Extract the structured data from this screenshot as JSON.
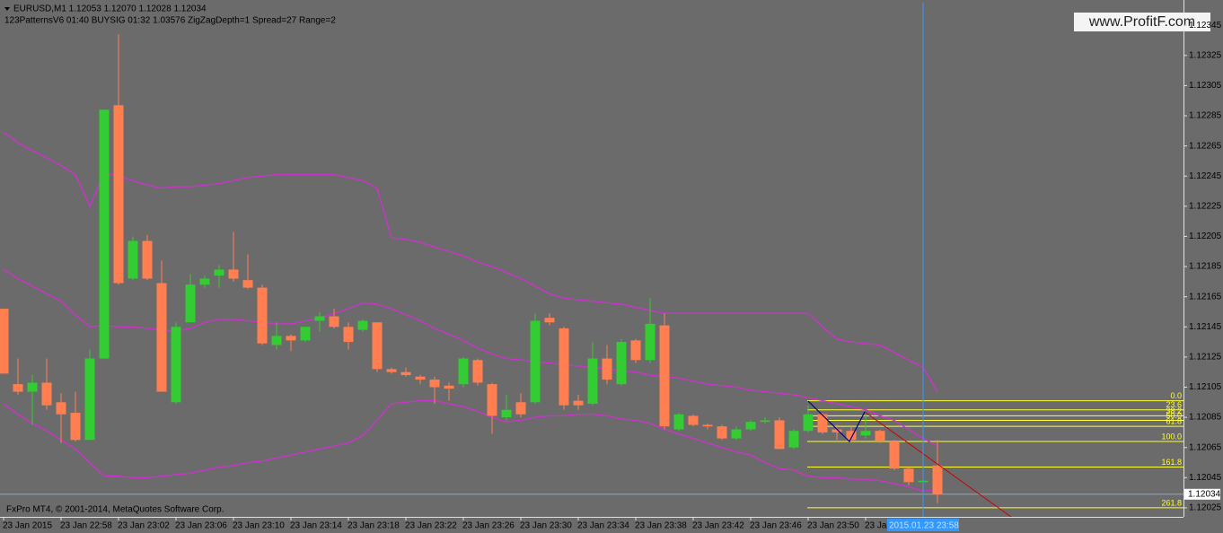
{
  "chart_data": {
    "type": "candlestick",
    "header": {
      "symbol_line": "EURUSD,M1  1.12053 1.12070 1.12028 1.12034",
      "indicator_line": "123PatternsV6  01:40  BUYSIG  01:32  1.03576  ZigZagDepth=1  Spread=27  Range=2"
    },
    "copyright": "FxPro MT4, © 2001-2014, MetaQuotes Software Corp.",
    "watermark": "www.ProfitF.com",
    "crosshair_label": "2015.01.23 23:58",
    "last_price": 1.12034,
    "bull_color": "#33cc33",
    "bear_color": "#ff7f50",
    "band_color": "#cc33cc",
    "fibo_color": "#ffff33",
    "ylim": [
      1.12019,
      1.1236
    ],
    "yticks": [
      1.12025,
      1.12045,
      1.12065,
      1.12085,
      1.12105,
      1.12125,
      1.12145,
      1.12165,
      1.12185,
      1.12205,
      1.12225,
      1.12245,
      1.12265,
      1.12285,
      1.12305,
      1.12325,
      1.12345
    ],
    "categories": [
      "23 Jan 2015",
      null,
      null,
      null,
      "23 Jan 22:58",
      null,
      null,
      null,
      "23 Jan 23:02",
      null,
      null,
      null,
      "23 Jan 23:06",
      null,
      null,
      null,
      "23 Jan 23:10",
      null,
      null,
      null,
      "23 Jan 23:14",
      null,
      null,
      null,
      "23 Jan 23:18",
      null,
      null,
      null,
      "23 Jan 23:22",
      null,
      null,
      null,
      "23 Jan 23:26",
      null,
      null,
      null,
      "23 Jan 23:30",
      null,
      null,
      null,
      "23 Jan 23:34",
      null,
      null,
      null,
      "23 Jan 23:38",
      null,
      null,
      null,
      "23 Jan 23:42",
      null,
      null,
      null,
      "23 Jan 23:46",
      null,
      null,
      null,
      "23 Jan 23:50",
      null,
      null,
      null,
      "23 Jan 23:54",
      null,
      null,
      null,
      null,
      null
    ],
    "open": [
      1.12157,
      1.12107,
      1.12102,
      1.12108,
      1.12095,
      1.12088,
      1.1207,
      1.12124,
      1.12292,
      1.12177,
      1.12202,
      1.12174,
      1.12095,
      1.12148,
      1.12173,
      1.12179,
      1.12183,
      1.12176,
      1.12171,
      1.12133,
      1.12139,
      1.12136,
      1.12149,
      1.12152,
      1.12145,
      1.12143,
      1.12148,
      1.12117,
      1.12115,
      1.12112,
      1.1211,
      1.12106,
      1.12107,
      1.12123,
      1.12107,
      1.12085,
      1.12095,
      1.12095,
      1.12151,
      1.12144,
      1.12096,
      1.12094,
      1.12124,
      1.12107,
      1.12136,
      1.12123,
      1.12146,
      1.12077,
      1.12086,
      1.1208,
      1.12079,
      1.12071,
      1.12077,
      1.12082,
      1.12083,
      1.12065,
      1.12076,
      1.12087,
      1.12077,
      1.12076,
      1.12073,
      1.12076,
      1.12069,
      1.12051,
      1.12042,
      1.12053
    ],
    "high": [
      1.12157,
      1.12124,
      1.12113,
      1.12124,
      1.12101,
      1.12102,
      1.1213,
      1.12289,
      1.12339,
      1.12205,
      1.12206,
      1.12189,
      1.12148,
      1.1218,
      1.12179,
      1.12186,
      1.12208,
      1.12193,
      1.12173,
      1.12148,
      1.1214,
      1.12145,
      1.12155,
      1.12157,
      1.12148,
      1.1215,
      1.12148,
      1.12118,
      1.12118,
      1.12113,
      1.12112,
      1.12108,
      1.12125,
      1.12124,
      1.12108,
      1.121,
      1.12101,
      1.12154,
      1.12154,
      1.12145,
      1.121,
      1.12135,
      1.12133,
      1.12137,
      1.12137,
      1.12164,
      1.12154,
      1.12088,
      1.12087,
      1.12081,
      1.1208,
      1.12079,
      1.12083,
      1.12085,
      1.12085,
      1.12077,
      1.12093,
      1.12088,
      1.1208,
      1.12079,
      1.12087,
      1.12077,
      1.1207,
      1.12052,
      1.12044,
      1.1207
    ],
    "low": [
      1.12114,
      1.121,
      1.1208,
      1.1209,
      1.12068,
      1.12069,
      1.1207,
      1.12124,
      1.12173,
      1.12176,
      1.12176,
      1.12102,
      1.12094,
      1.12148,
      1.12171,
      1.12171,
      1.12175,
      1.1217,
      1.12133,
      1.1213,
      1.12129,
      1.12135,
      1.12142,
      1.12144,
      1.1213,
      1.12142,
      1.12115,
      1.12114,
      1.12112,
      1.12107,
      1.12094,
      1.12096,
      1.12105,
      1.12106,
      1.12074,
      1.12083,
      1.12085,
      1.12094,
      1.12146,
      1.1209,
      1.1209,
      1.12093,
      1.12107,
      1.12106,
      1.12121,
      1.12121,
      1.12077,
      1.12076,
      1.12079,
      1.12077,
      1.1207,
      1.1207,
      1.12076,
      1.12081,
      1.12064,
      1.12064,
      1.12075,
      1.12074,
      1.1207,
      1.12069,
      1.12071,
      1.12068,
      1.1205,
      1.1204,
      1.1204,
      1.12028
    ],
    "close": [
      1.12114,
      1.12102,
      1.12108,
      1.12093,
      1.12087,
      1.1207,
      1.12124,
      1.12289,
      1.12174,
      1.12202,
      1.12177,
      1.12102,
      1.12145,
      1.12173,
      1.12177,
      1.12183,
      1.12177,
      1.12171,
      1.12134,
      1.12139,
      1.12136,
      1.12145,
      1.12152,
      1.12145,
      1.12135,
      1.12149,
      1.12117,
      1.12115,
      1.12113,
      1.1211,
      1.12105,
      1.12104,
      1.12124,
      1.12108,
      1.12086,
      1.1209,
      1.12087,
      1.12149,
      1.12148,
      1.12093,
      1.12093,
      1.12124,
      1.1211,
      1.12135,
      1.12123,
      1.12147,
      1.12079,
      1.12087,
      1.1208,
      1.12079,
      1.12071,
      1.12077,
      1.12082,
      1.12083,
      1.12064,
      1.12076,
      1.12087,
      1.12075,
      1.12075,
      1.1207,
      1.12076,
      1.12069,
      1.12051,
      1.12042,
      1.12043,
      1.12034
    ],
    "series": [
      {
        "values": [
          1.12274,
          1.12267,
          1.12262,
          1.12257,
          1.12252,
          1.12246,
          1.12225,
          1.12247,
          1.12245,
          1.12242,
          1.12239,
          1.12237,
          1.12238,
          1.12238,
          1.12239,
          1.1224,
          1.12242,
          1.12244,
          1.12245,
          1.12246,
          1.12246,
          1.12246,
          1.12246,
          1.12246,
          1.12244,
          1.12242,
          1.12237,
          1.12204,
          1.12203,
          1.12201,
          1.12198,
          1.12195,
          1.12192,
          1.12188,
          1.12185,
          1.12181,
          1.12177,
          1.12172,
          1.12167,
          1.12164,
          1.12163,
          1.12162,
          1.12161,
          1.1216,
          1.12158,
          1.12156,
          1.12154,
          1.12154,
          1.12154,
          1.12154,
          1.12154,
          1.12154,
          1.12154,
          1.12154,
          1.12154,
          1.12154,
          1.12154,
          1.12145,
          1.12137,
          1.12135,
          1.12134,
          1.12133,
          1.12128,
          1.12123,
          1.12118,
          1.12102
        ]
      },
      {
        "values": [
          1.12183,
          1.12177,
          1.12172,
          1.12167,
          1.12162,
          1.12153,
          1.12145,
          1.12146,
          1.12145,
          1.12145,
          1.12144,
          1.12143,
          1.12142,
          1.12144,
          1.12148,
          1.1215,
          1.1215,
          1.12149,
          1.12148,
          1.12147,
          1.12147,
          1.12149,
          1.12151,
          1.12154,
          1.12157,
          1.12161,
          1.1216,
          1.12157,
          1.12153,
          1.12149,
          1.12144,
          1.1214,
          1.12136,
          1.12131,
          1.12127,
          1.12124,
          1.12123,
          1.12122,
          1.12121,
          1.1212,
          1.12119,
          1.12118,
          1.12117,
          1.12116,
          1.12115,
          1.12113,
          1.12112,
          1.12111,
          1.12109,
          1.12107,
          1.12106,
          1.12105,
          1.12103,
          1.12102,
          1.12101,
          1.121,
          1.12098,
          1.12096,
          1.12094,
          1.12092,
          1.1209,
          1.12086,
          1.12083,
          1.12077,
          1.12071,
          1.12066
        ]
      },
      {
        "values": [
          1.12094,
          1.12087,
          1.12081,
          1.12076,
          1.1207,
          1.12064,
          1.12055,
          1.12046,
          1.12046,
          1.12045,
          1.12045,
          1.12046,
          1.12047,
          1.12048,
          1.1205,
          1.12052,
          1.12053,
          1.12055,
          1.12056,
          1.12058,
          1.1206,
          1.12062,
          1.12064,
          1.12066,
          1.12068,
          1.12073,
          1.12083,
          1.12094,
          1.12095,
          1.12096,
          1.12096,
          1.12094,
          1.12092,
          1.12089,
          1.12085,
          1.12082,
          1.12083,
          1.12085,
          1.12086,
          1.12086,
          1.12087,
          1.12087,
          1.12086,
          1.12084,
          1.12083,
          1.12081,
          1.12077,
          1.12074,
          1.12071,
          1.12068,
          1.12065,
          1.12062,
          1.1206,
          1.12055,
          1.12051,
          1.1205,
          1.12046,
          1.12045,
          1.12045,
          1.12044,
          1.12044,
          1.12043,
          1.12041,
          1.12039,
          1.12036,
          1.12037
        ]
      }
    ],
    "fibo": [
      {
        "label": "0.0",
        "price": 1.12096
      },
      {
        "label": "23.6",
        "price": 1.1209
      },
      {
        "label": "38.2",
        "price": 1.12086
      },
      {
        "label": "50.0",
        "price": 1.12083
      },
      {
        "label": "61.8",
        "price": 1.12079
      },
      {
        "label": "100.0",
        "price": 1.12069
      },
      {
        "label": "161.8",
        "price": 1.12052
      },
      {
        "label": "261.8",
        "price": 1.12025
      }
    ]
  }
}
